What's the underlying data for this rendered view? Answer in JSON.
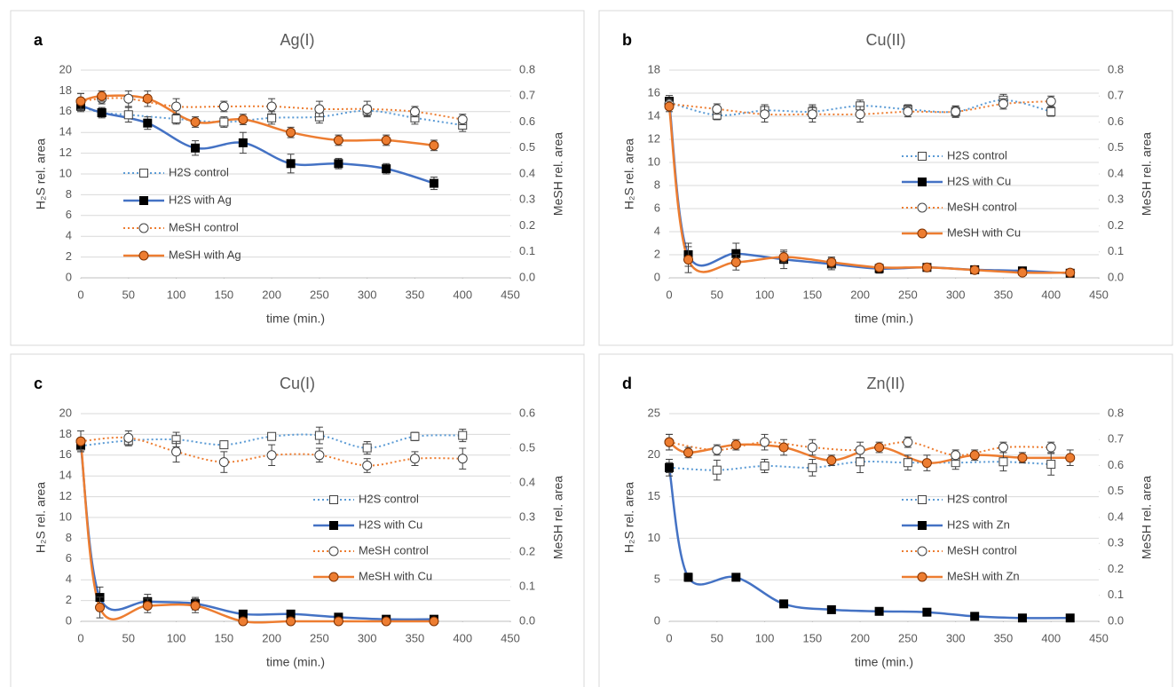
{
  "chart_data": [
    {
      "type": "line",
      "label": "a",
      "title": "Ag(I)",
      "x_label": "time (min.)",
      "y_label": "H₂S rel. area",
      "y2_label": "MeSH rel. area",
      "xlim": [
        0,
        450
      ],
      "xticks": [
        0,
        50,
        100,
        150,
        200,
        250,
        300,
        350,
        400,
        450
      ],
      "ylim": [
        0,
        20
      ],
      "yticks": [
        0,
        2,
        4,
        6,
        8,
        10,
        12,
        14,
        16,
        18,
        20
      ],
      "y2lim": [
        0,
        0.8
      ],
      "y2ticks": [
        {
          "value": 0,
          "label": "0.0"
        },
        0.1,
        0.2,
        0.3,
        0.4,
        0.5,
        0.6,
        0.7,
        0.8
      ],
      "grid": true,
      "legend": "center-left",
      "series": [
        {
          "name": "H2S control",
          "color": "#5b9bd5",
          "line_style": "dotted",
          "marker": "open-square",
          "x": [
            0,
            22,
            50,
            100,
            150,
            200,
            250,
            300,
            350,
            400
          ],
          "values": [
            16.5,
            15.9,
            15.7,
            15.3,
            15.0,
            15.4,
            15.5,
            16.1,
            15.4,
            14.7
          ],
          "errors": [
            0.5,
            0.4,
            0.7,
            0.5,
            0.5,
            0.6,
            0.6,
            0.5,
            0.6,
            0.6
          ]
        },
        {
          "name": "H2S with Ag",
          "color": "#4472c4",
          "line_style": "solid",
          "marker": "filled-square",
          "x": [
            0,
            22,
            70,
            120,
            170,
            220,
            270,
            320,
            370
          ],
          "values": [
            16.6,
            15.9,
            14.9,
            12.5,
            13.0,
            11.0,
            11.0,
            10.5,
            9.1
          ],
          "errors": [
            0.5,
            0.5,
            0.6,
            0.7,
            1.0,
            0.9,
            0.5,
            0.5,
            0.6
          ]
        },
        {
          "name": "MeSH control",
          "color": "#ed7d31",
          "line_style": "dotted",
          "marker": "open-circle",
          "axis": "y2",
          "x": [
            0,
            22,
            50,
            100,
            150,
            200,
            250,
            300,
            350,
            400
          ],
          "values": [
            0.68,
            0.69,
            0.69,
            0.66,
            0.66,
            0.66,
            0.65,
            0.65,
            0.64,
            0.61
          ],
          "errors": [
            0.03,
            0.02,
            0.03,
            0.03,
            0.02,
            0.03,
            0.03,
            0.03,
            0.02,
            0.02
          ]
        },
        {
          "name": "MeSH with Ag",
          "color": "#ed7d31",
          "line_style": "solid",
          "marker": "filled-circle",
          "axis": "y2",
          "x": [
            0,
            22,
            70,
            120,
            170,
            220,
            270,
            320,
            370
          ],
          "values": [
            0.68,
            0.7,
            0.69,
            0.6,
            0.61,
            0.56,
            0.53,
            0.53,
            0.51
          ],
          "errors": [
            0.03,
            0.02,
            0.03,
            0.02,
            0.02,
            0.02,
            0.02,
            0.02,
            0.02
          ]
        }
      ]
    },
    {
      "type": "line",
      "label": "b",
      "title": "Cu(II)",
      "x_label": "time (min.)",
      "y_label": "H₂S rel. area",
      "y2_label": "MeSH rel. area",
      "xlim": [
        0,
        450
      ],
      "xticks": [
        0,
        50,
        100,
        150,
        200,
        250,
        300,
        350,
        400,
        450
      ],
      "ylim": [
        0,
        18
      ],
      "yticks": [
        0,
        2,
        4,
        6,
        8,
        10,
        12,
        14,
        16,
        18
      ],
      "y2lim": [
        0,
        0.8
      ],
      "y2ticks": [
        {
          "value": 0,
          "label": "0.0"
        },
        0.1,
        0.2,
        0.3,
        0.4,
        0.5,
        0.6,
        0.7,
        0.8
      ],
      "grid": true,
      "legend": "center-right",
      "series": [
        {
          "name": "H2S control",
          "color": "#5b9bd5",
          "line_style": "dotted",
          "marker": "open-square",
          "x": [
            0,
            50,
            100,
            150,
            200,
            250,
            300,
            350,
            400
          ],
          "values": [
            15.2,
            14.1,
            14.5,
            14.4,
            14.9,
            14.6,
            14.4,
            15.4,
            14.4
          ],
          "errors": [
            0.4,
            0.4,
            0.5,
            0.6,
            0.5,
            0.4,
            0.5,
            0.5,
            0.4
          ]
        },
        {
          "name": "H2S with Cu",
          "color": "#4472c4",
          "line_style": "solid",
          "marker": "filled-square",
          "x": [
            0,
            20,
            70,
            120,
            170,
            220,
            270,
            320,
            370,
            420
          ],
          "values": [
            15.3,
            2.0,
            2.1,
            1.6,
            1.2,
            0.8,
            0.9,
            0.7,
            0.6,
            0.4
          ],
          "errors": [
            0.5,
            1.0,
            0.9,
            0.8,
            0.5,
            0.4,
            0.3,
            0.3,
            0.3,
            0.3
          ]
        },
        {
          "name": "MeSH control",
          "color": "#ed7d31",
          "line_style": "dotted",
          "marker": "open-circle",
          "axis": "y2",
          "x": [
            0,
            50,
            100,
            150,
            200,
            250,
            300,
            350,
            400
          ],
          "values": [
            0.67,
            0.65,
            0.63,
            0.63,
            0.63,
            0.64,
            0.64,
            0.67,
            0.68
          ],
          "errors": [
            0.02,
            0.02,
            0.03,
            0.03,
            0.03,
            0.02,
            0.02,
            0.02,
            0.02
          ]
        },
        {
          "name": "MeSH with Cu",
          "color": "#ed7d31",
          "line_style": "solid",
          "marker": "filled-circle",
          "axis": "y2",
          "x": [
            0,
            20,
            70,
            120,
            170,
            220,
            270,
            320,
            370,
            420
          ],
          "values": [
            0.66,
            0.07,
            0.06,
            0.08,
            0.06,
            0.04,
            0.04,
            0.03,
            0.02,
            0.02
          ],
          "errors": [
            0.02,
            0.05,
            0.03,
            0.02,
            0.02,
            0.01,
            0.01,
            0.01,
            0.01,
            0.01
          ]
        }
      ]
    },
    {
      "type": "line",
      "label": "c",
      "title": "Cu(I)",
      "x_label": "time (min.)",
      "y_label": "H₂S rel. area",
      "y2_label": "MeSH rel. area",
      "xlim": [
        0,
        450
      ],
      "xticks": [
        0,
        50,
        100,
        150,
        200,
        250,
        300,
        350,
        400,
        450
      ],
      "ylim": [
        0,
        20
      ],
      "yticks": [
        0,
        2,
        4,
        6,
        8,
        10,
        12,
        14,
        16,
        18,
        20
      ],
      "y2lim": [
        0,
        0.6
      ],
      "y2ticks": [
        {
          "value": 0,
          "label": "0.0"
        },
        0.1,
        0.2,
        0.3,
        0.4,
        0.5,
        0.6
      ],
      "grid": true,
      "legend": "center-right",
      "series": [
        {
          "name": "H2S control",
          "color": "#5b9bd5",
          "line_style": "dotted",
          "marker": "open-square",
          "x": [
            0,
            50,
            100,
            150,
            200,
            250,
            300,
            350,
            400
          ],
          "values": [
            16.9,
            17.4,
            17.5,
            17.0,
            17.8,
            17.9,
            16.7,
            17.8,
            17.9
          ],
          "errors": [
            0.4,
            0.5,
            0.7,
            0.3,
            0.3,
            0.8,
            0.6,
            0.4,
            0.6
          ]
        },
        {
          "name": "H2S with Cu",
          "color": "#4472c4",
          "line_style": "solid",
          "marker": "filled-square",
          "x": [
            0,
            20,
            70,
            120,
            170,
            220,
            270,
            320,
            370
          ],
          "values": [
            17.0,
            2.3,
            1.9,
            1.7,
            0.7,
            0.7,
            0.4,
            0.2,
            0.2
          ],
          "errors": [
            0.5,
            1.0,
            0.7,
            0.6,
            0.3,
            0.2,
            0.2,
            0.1,
            0.1
          ]
        },
        {
          "name": "MeSH control",
          "color": "#ed7d31",
          "line_style": "dotted",
          "marker": "open-circle",
          "axis": "y2",
          "x": [
            0,
            50,
            100,
            150,
            200,
            250,
            300,
            350,
            400
          ],
          "values": [
            0.52,
            0.53,
            0.49,
            0.46,
            0.48,
            0.48,
            0.45,
            0.47,
            0.47
          ],
          "errors": [
            0.03,
            0.02,
            0.03,
            0.03,
            0.03,
            0.02,
            0.02,
            0.02,
            0.03
          ]
        },
        {
          "name": "MeSH with Cu",
          "color": "#ed7d31",
          "line_style": "solid",
          "marker": "filled-circle",
          "axis": "y2",
          "x": [
            0,
            20,
            70,
            120,
            170,
            220,
            270,
            320,
            370
          ],
          "values": [
            0.52,
            0.04,
            0.045,
            0.045,
            0,
            0,
            0,
            0,
            0
          ],
          "errors": [
            0.03,
            0.03,
            0.02,
            0.02,
            0,
            0,
            0,
            0,
            0
          ]
        }
      ]
    },
    {
      "type": "line",
      "label": "d",
      "title": "Zn(II)",
      "x_label": "time (min.)",
      "y_label": "H₂S rel. area",
      "y2_label": "MeSH rel. area",
      "xlim": [
        0,
        450
      ],
      "xticks": [
        0,
        50,
        100,
        150,
        200,
        250,
        300,
        350,
        400,
        450
      ],
      "ylim": [
        0,
        25
      ],
      "yticks": [
        0,
        5,
        10,
        15,
        20,
        25
      ],
      "y2lim": [
        0,
        0.8
      ],
      "y2ticks": [
        {
          "value": 0,
          "label": "0.0"
        },
        0.1,
        0.2,
        0.3,
        0.4,
        0.5,
        0.6,
        0.7,
        0.8
      ],
      "grid": true,
      "legend": "center-right",
      "series": [
        {
          "name": "H2S control",
          "color": "#5b9bd5",
          "line_style": "dotted",
          "marker": "open-square",
          "x": [
            0,
            50,
            100,
            150,
            200,
            250,
            300,
            350,
            400
          ],
          "values": [
            18.5,
            18.2,
            18.7,
            18.5,
            19.2,
            19.1,
            19.1,
            19.2,
            18.9
          ],
          "errors": [
            0.6,
            1.2,
            0.8,
            1.0,
            1.3,
            0.9,
            0.8,
            1.1,
            1.3
          ]
        },
        {
          "name": "H2S with Zn",
          "color": "#4472c4",
          "line_style": "solid",
          "marker": "filled-square",
          "x": [
            0,
            20,
            70,
            120,
            170,
            220,
            270,
            320,
            370,
            420
          ],
          "values": [
            18.5,
            5.3,
            5.3,
            2.1,
            1.4,
            1.2,
            1.1,
            0.6,
            0.4,
            0.4
          ],
          "errors": [
            1.0,
            0.5,
            0.4,
            0.3,
            0.2,
            0.2,
            0.2,
            0.1,
            0.1,
            0.1
          ]
        },
        {
          "name": "MeSH control",
          "color": "#ed7d31",
          "line_style": "dotted",
          "marker": "open-circle",
          "axis": "y2",
          "x": [
            0,
            50,
            100,
            150,
            200,
            250,
            300,
            350,
            400
          ],
          "values": [
            0.69,
            0.66,
            0.69,
            0.67,
            0.66,
            0.69,
            0.64,
            0.67,
            0.67
          ],
          "errors": [
            0.03,
            0.02,
            0.03,
            0.03,
            0.03,
            0.02,
            0.02,
            0.02,
            0.02
          ]
        },
        {
          "name": "MeSH with Zn",
          "color": "#ed7d31",
          "line_style": "solid",
          "marker": "filled-circle",
          "axis": "y2",
          "x": [
            0,
            20,
            70,
            120,
            170,
            220,
            270,
            320,
            370,
            420
          ],
          "values": [
            0.69,
            0.65,
            0.68,
            0.67,
            0.62,
            0.67,
            0.61,
            0.64,
            0.63,
            0.63
          ],
          "errors": [
            0.03,
            0.02,
            0.02,
            0.03,
            0.02,
            0.02,
            0.03,
            0.02,
            0.02,
            0.03
          ]
        }
      ]
    }
  ]
}
